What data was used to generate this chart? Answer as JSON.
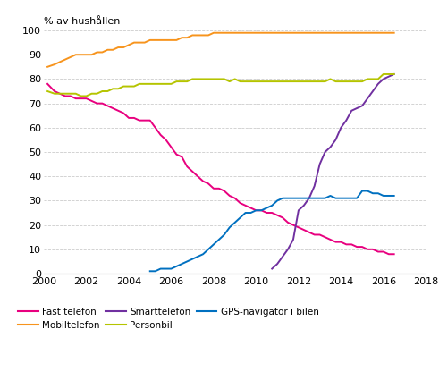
{
  "ylabel": "% av hushållen",
  "xlim": [
    2000,
    2018
  ],
  "ylim": [
    0,
    100
  ],
  "xticks": [
    2000,
    2002,
    2004,
    2006,
    2008,
    2010,
    2012,
    2014,
    2016,
    2018
  ],
  "yticks": [
    0,
    10,
    20,
    30,
    40,
    50,
    60,
    70,
    80,
    90,
    100
  ],
  "series": {
    "Fast telefon": {
      "color": "#e8007f",
      "x": [
        2000.17,
        2000.5,
        2000.75,
        2001.0,
        2001.25,
        2001.5,
        2001.75,
        2002.0,
        2002.25,
        2002.5,
        2002.75,
        2003.0,
        2003.25,
        2003.5,
        2003.75,
        2004.0,
        2004.25,
        2004.5,
        2004.75,
        2005.0,
        2005.25,
        2005.5,
        2005.75,
        2006.0,
        2006.25,
        2006.5,
        2006.75,
        2007.0,
        2007.25,
        2007.5,
        2007.75,
        2008.0,
        2008.25,
        2008.5,
        2008.75,
        2009.0,
        2009.25,
        2009.5,
        2009.75,
        2010.0,
        2010.25,
        2010.5,
        2010.75,
        2011.0,
        2011.25,
        2011.5,
        2011.75,
        2012.0,
        2012.25,
        2012.5,
        2012.75,
        2013.0,
        2013.25,
        2013.5,
        2013.75,
        2014.0,
        2014.25,
        2014.5,
        2014.75,
        2015.0,
        2015.25,
        2015.5,
        2015.75,
        2016.0,
        2016.25,
        2016.5
      ],
      "y": [
        78,
        75,
        74,
        73,
        73,
        72,
        72,
        72,
        71,
        70,
        70,
        69,
        68,
        67,
        66,
        64,
        64,
        63,
        63,
        63,
        60,
        57,
        55,
        52,
        49,
        48,
        44,
        42,
        40,
        38,
        37,
        35,
        35,
        34,
        32,
        31,
        29,
        28,
        27,
        26,
        26,
        25,
        25,
        24,
        23,
        21,
        20,
        19,
        18,
        17,
        16,
        16,
        15,
        14,
        13,
        13,
        12,
        12,
        11,
        11,
        10,
        10,
        9,
        9,
        8,
        8
      ]
    },
    "Mobiltelefon": {
      "color": "#f7941d",
      "x": [
        2000.17,
        2000.5,
        2000.75,
        2001.0,
        2001.25,
        2001.5,
        2001.75,
        2002.0,
        2002.25,
        2002.5,
        2002.75,
        2003.0,
        2003.25,
        2003.5,
        2003.75,
        2004.0,
        2004.25,
        2004.5,
        2004.75,
        2005.0,
        2005.25,
        2005.5,
        2005.75,
        2006.0,
        2006.25,
        2006.5,
        2006.75,
        2007.0,
        2007.25,
        2007.5,
        2007.75,
        2008.0,
        2008.25,
        2008.5,
        2008.75,
        2009.0,
        2009.25,
        2009.5,
        2009.75,
        2010.0,
        2010.25,
        2010.5,
        2010.75,
        2011.0,
        2011.25,
        2011.5,
        2011.75,
        2012.0,
        2012.25,
        2012.5,
        2012.75,
        2013.0,
        2013.25,
        2013.5,
        2013.75,
        2014.0,
        2014.25,
        2014.5,
        2014.75,
        2015.0,
        2015.25,
        2015.5,
        2015.75,
        2016.0,
        2016.25,
        2016.5
      ],
      "y": [
        85,
        86,
        87,
        88,
        89,
        90,
        90,
        90,
        90,
        91,
        91,
        92,
        92,
        93,
        93,
        94,
        95,
        95,
        95,
        96,
        96,
        96,
        96,
        96,
        96,
        97,
        97,
        98,
        98,
        98,
        98,
        99,
        99,
        99,
        99,
        99,
        99,
        99,
        99,
        99,
        99,
        99,
        99,
        99,
        99,
        99,
        99,
        99,
        99,
        99,
        99,
        99,
        99,
        99,
        99,
        99,
        99,
        99,
        99,
        99,
        99,
        99,
        99,
        99,
        99,
        99
      ]
    },
    "Smarttelefon": {
      "color": "#7030a0",
      "x": [
        2010.75,
        2011.0,
        2011.25,
        2011.5,
        2011.75,
        2012.0,
        2012.25,
        2012.5,
        2012.75,
        2013.0,
        2013.25,
        2013.5,
        2013.75,
        2014.0,
        2014.25,
        2014.5,
        2014.75,
        2015.0,
        2015.25,
        2015.5,
        2015.75,
        2016.0,
        2016.25,
        2016.5
      ],
      "y": [
        2,
        4,
        7,
        10,
        14,
        26,
        28,
        31,
        36,
        45,
        50,
        52,
        55,
        60,
        63,
        67,
        68,
        69,
        72,
        75,
        78,
        80,
        81,
        82
      ]
    },
    "Personbil": {
      "color": "#b5c400",
      "x": [
        2000.17,
        2000.5,
        2000.75,
        2001.0,
        2001.25,
        2001.5,
        2001.75,
        2002.0,
        2002.25,
        2002.5,
        2002.75,
        2003.0,
        2003.25,
        2003.5,
        2003.75,
        2004.0,
        2004.25,
        2004.5,
        2004.75,
        2005.0,
        2005.25,
        2005.5,
        2005.75,
        2006.0,
        2006.25,
        2006.5,
        2006.75,
        2007.0,
        2007.25,
        2007.5,
        2007.75,
        2008.0,
        2008.25,
        2008.5,
        2008.75,
        2009.0,
        2009.25,
        2009.5,
        2009.75,
        2010.0,
        2010.25,
        2010.5,
        2010.75,
        2011.0,
        2011.25,
        2011.5,
        2011.75,
        2012.0,
        2012.25,
        2012.5,
        2012.75,
        2013.0,
        2013.25,
        2013.5,
        2013.75,
        2014.0,
        2014.25,
        2014.5,
        2014.75,
        2015.0,
        2015.25,
        2015.5,
        2015.75,
        2016.0,
        2016.25,
        2016.5
      ],
      "y": [
        75,
        74,
        74,
        74,
        74,
        74,
        73,
        73,
        74,
        74,
        75,
        75,
        76,
        76,
        77,
        77,
        77,
        78,
        78,
        78,
        78,
        78,
        78,
        78,
        79,
        79,
        79,
        80,
        80,
        80,
        80,
        80,
        80,
        80,
        79,
        80,
        79,
        79,
        79,
        79,
        79,
        79,
        79,
        79,
        79,
        79,
        79,
        79,
        79,
        79,
        79,
        79,
        79,
        80,
        79,
        79,
        79,
        79,
        79,
        79,
        80,
        80,
        80,
        82,
        82,
        82
      ]
    },
    "GPS-navigatör i bilen": {
      "color": "#0070c0",
      "x": [
        2005.0,
        2005.25,
        2005.5,
        2005.75,
        2006.0,
        2006.25,
        2006.5,
        2006.75,
        2007.0,
        2007.25,
        2007.5,
        2007.75,
        2008.0,
        2008.25,
        2008.5,
        2008.75,
        2009.0,
        2009.25,
        2009.5,
        2009.75,
        2010.0,
        2010.25,
        2010.5,
        2010.75,
        2011.0,
        2011.25,
        2011.5,
        2011.75,
        2012.0,
        2012.25,
        2012.5,
        2012.75,
        2013.0,
        2013.25,
        2013.5,
        2013.75,
        2014.0,
        2014.25,
        2014.5,
        2014.75,
        2015.0,
        2015.25,
        2015.5,
        2015.75,
        2016.0,
        2016.25,
        2016.5
      ],
      "y": [
        1,
        1,
        2,
        2,
        2,
        3,
        4,
        5,
        6,
        7,
        8,
        10,
        12,
        14,
        16,
        19,
        21,
        23,
        25,
        25,
        26,
        26,
        27,
        28,
        30,
        31,
        31,
        31,
        31,
        31,
        31,
        31,
        31,
        31,
        32,
        31,
        31,
        31,
        31,
        31,
        34,
        34,
        33,
        33,
        32,
        32,
        32
      ]
    }
  },
  "legend_order": [
    "Fast telefon",
    "Mobiltelefon",
    "Smarttelefon",
    "Personbil",
    "GPS-navigatör i bilen"
  ],
  "background_color": "#ffffff",
  "grid_color": "#cccccc"
}
